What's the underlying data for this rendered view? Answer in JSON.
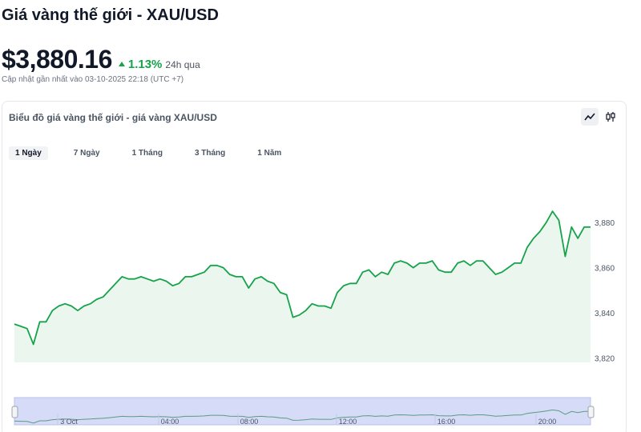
{
  "header": {
    "title": "Giá vàng thế giới - XAU/USD",
    "price": "$3,880.16",
    "change": "1.13%",
    "change_period": "24h qua",
    "updated": "Cập nhật gần nhất vào 03-10-2025 22:18 (UTC +7)"
  },
  "card": {
    "title": "Biểu đồ giá vàng thế giới - giá vàng XAU/USD",
    "tools": [
      {
        "icon": "line-chart-icon",
        "active": true
      },
      {
        "icon": "candlestick-icon",
        "active": false
      }
    ],
    "ranges": [
      {
        "label": "1 Ngày",
        "active": true
      },
      {
        "label": "7 Ngày",
        "active": false
      },
      {
        "label": "1 Tháng",
        "active": false
      },
      {
        "label": "3 Tháng",
        "active": false
      },
      {
        "label": "1 Năm",
        "active": false
      }
    ]
  },
  "colors": {
    "line": "#16a34a",
    "area": "#eaf6ee",
    "up": "#16a34a",
    "navigator_fill": "#d6dcf7",
    "navigator_line": "#5b9b83"
  },
  "chart_data": {
    "type": "area",
    "ylim": [
      3818,
      3890
    ],
    "yticks": [
      3820,
      3840,
      3860,
      3880
    ],
    "ytick_labels": [
      "3,820",
      "3,840",
      "3,860",
      "3,880"
    ],
    "grid": false,
    "values": [
      3835,
      3834,
      3833,
      3826,
      3836,
      3836,
      3841,
      3843,
      3844,
      3843,
      3841,
      3843,
      3844,
      3846,
      3847,
      3850,
      3853,
      3856,
      3855,
      3855,
      3856,
      3855,
      3854,
      3855,
      3854,
      3852,
      3853,
      3856,
      3856,
      3857,
      3858,
      3861,
      3861,
      3860,
      3857,
      3856,
      3856,
      3851,
      3855,
      3856,
      3854,
      3853,
      3849,
      3848,
      3838,
      3839,
      3841,
      3844,
      3843,
      3843,
      3842,
      3849,
      3852,
      3853,
      3853,
      3858,
      3859,
      3856,
      3858,
      3857,
      3862,
      3863,
      3862,
      3860,
      3862,
      3862,
      3863,
      3859,
      3858,
      3858,
      3862,
      3863,
      3861,
      3863,
      3863,
      3860,
      3857,
      3858,
      3860,
      3862,
      3862,
      3869,
      3873,
      3876,
      3880,
      3885,
      3881,
      3865,
      3878,
      3873,
      3878,
      3878
    ],
    "navigator": {
      "x_labels": [
        "3 Oct",
        "04:00",
        "08:00",
        "12:00",
        "16:00",
        "20:00"
      ]
    }
  }
}
